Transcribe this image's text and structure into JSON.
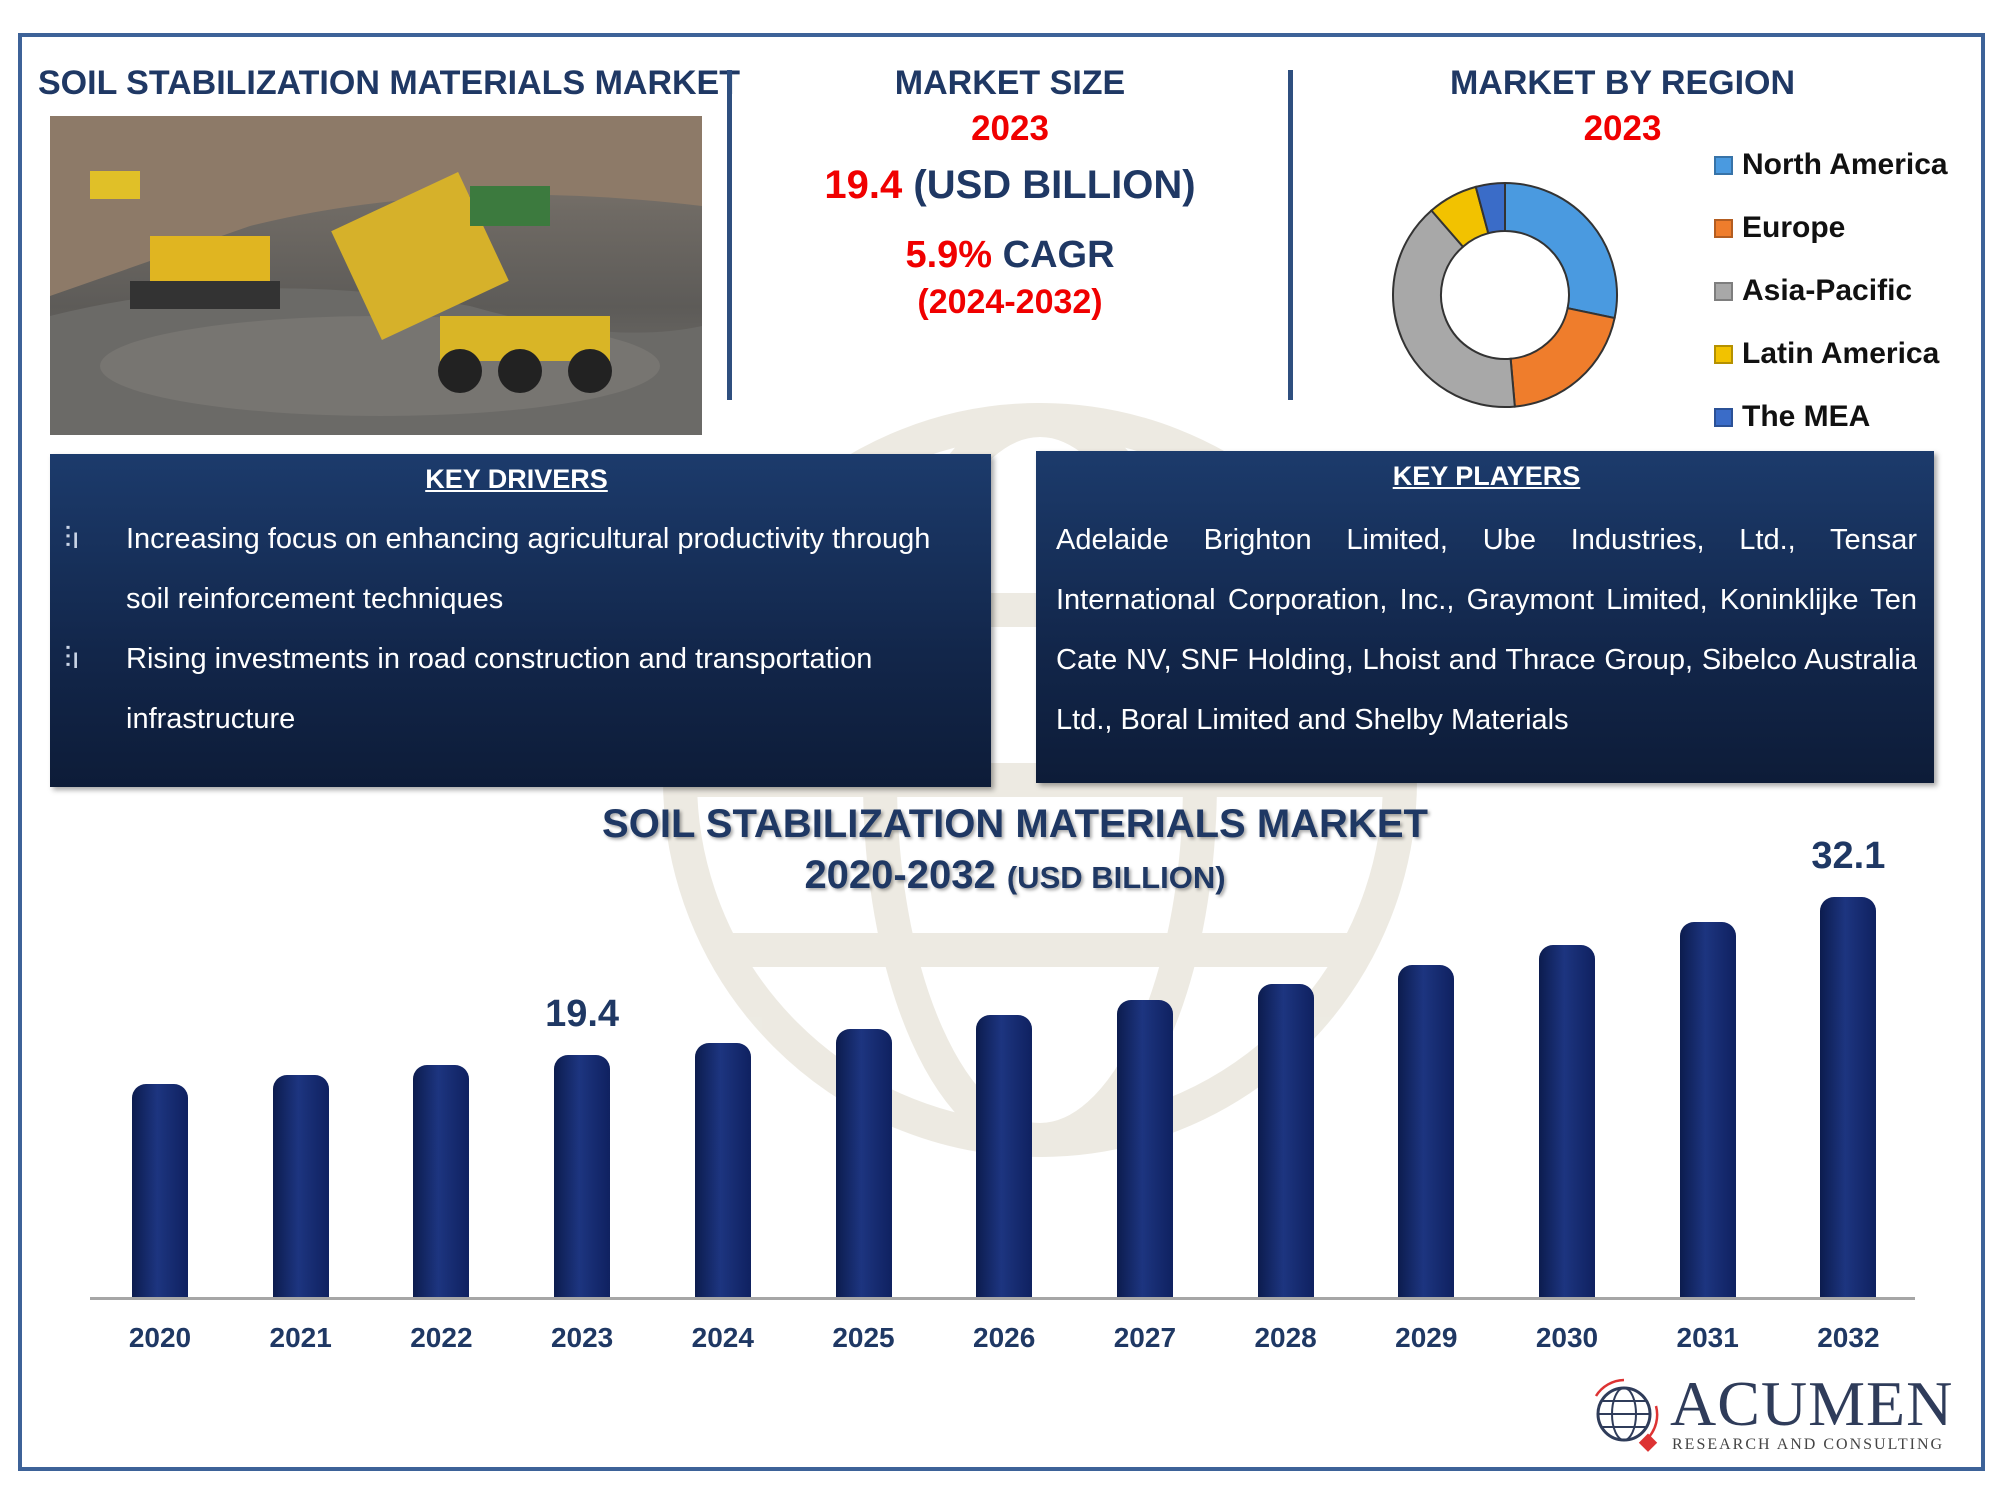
{
  "header": {
    "title": "SOIL STABILIZATION MATERIALS MARKET",
    "market_size": {
      "label": "MARKET SIZE",
      "year": "2023",
      "value": "19.4",
      "unit": "(USD BILLION)",
      "cagr_value": "5.9%",
      "cagr_label": "CAGR",
      "cagr_period": "(2024-2032)"
    },
    "region": {
      "label": "MARKET BY REGION",
      "year": "2023"
    }
  },
  "key_drivers": {
    "title": "KEY DRIVERS",
    "items": [
      "Increasing focus on enhancing agricultural productivity through soil reinforcement techniques",
      "Rising investments in road construction and transportation infrastructure"
    ]
  },
  "key_players": {
    "title": "KEY PLAYERS",
    "text": "Adelaide Brighton Limited, Ube Industries, Ltd., Tensar International Corporation, Inc., Graymont Limited, Koninklijke Ten Cate NV, SNF Holding, Lhoist and Thrace Group, Sibelco Australia Ltd., Boral Limited and Shelby Materials"
  },
  "logo": {
    "name": "ACUMEN",
    "tagline": "RESEARCH AND CONSULTING"
  },
  "chart_data": [
    {
      "type": "pie",
      "title": "MARKET BY REGION 2023",
      "donut": true,
      "labels": [
        "North America",
        "Europe",
        "Asia-Pacific",
        "Latin America",
        "The MEA"
      ],
      "values": [
        28.3,
        20.3,
        40.0,
        7.2,
        4.2
      ],
      "colors": [
        "#4a9ae0",
        "#ef7d2c",
        "#a8a8a8",
        "#f2c200",
        "#3a6cc8"
      ],
      "legend": "right"
    },
    {
      "type": "bar",
      "title": "SOIL STABILIZATION MATERIALS MARKET",
      "subtitle_years": "2020-2032",
      "subtitle_unit": "(USD BILLION)",
      "categories": [
        "2020",
        "2021",
        "2022",
        "2023",
        "2024",
        "2025",
        "2026",
        "2027",
        "2028",
        "2029",
        "2030",
        "2031",
        "2032"
      ],
      "values": [
        17.1,
        17.8,
        18.6,
        19.4,
        20.4,
        21.5,
        22.6,
        23.8,
        25.1,
        26.6,
        28.2,
        30.1,
        32.1
      ],
      "data_labels": {
        "2023": "19.4",
        "2032": "32.1"
      },
      "bar_color": "#14296a",
      "ylim": [
        0,
        35
      ]
    }
  ]
}
